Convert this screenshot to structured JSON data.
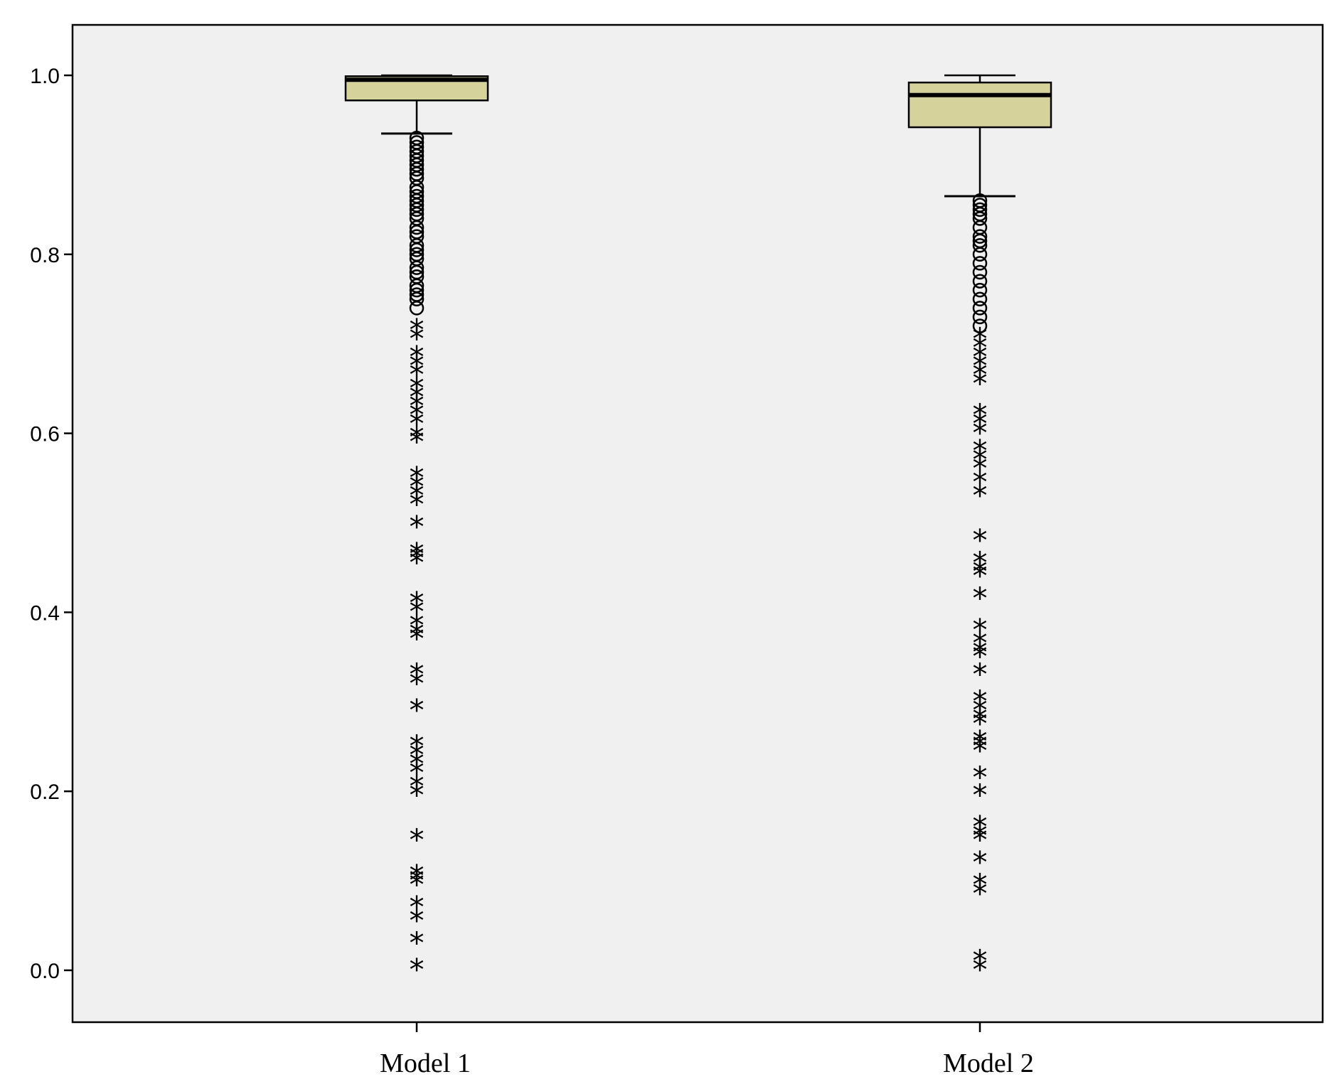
{
  "chart_data": {
    "type": "boxplot",
    "title": "",
    "xlabel": "",
    "ylabel": "",
    "ylim": [
      -0.07,
      1.055
    ],
    "yticks": [
      0.0,
      0.2,
      0.4,
      0.6,
      0.8,
      1.0
    ],
    "ytick_labels": [
      "0.0",
      "0.2",
      "0.4",
      "0.6",
      "0.8",
      "1.0"
    ],
    "grid": false,
    "legend": "none",
    "colors": {
      "plot_bg": "#f0f0f0",
      "box_fill": "#d6d29c",
      "stroke": "#000000"
    },
    "categories": [
      "Model 1",
      "Model 2"
    ],
    "boxes": [
      {
        "category": "Model 1",
        "whisker_low": 0.935,
        "q1": 0.972,
        "median": 0.995,
        "q3": 0.999,
        "whisker_high": 1.0,
        "outliers_circle": [
          0.93,
          0.925,
          0.92,
          0.915,
          0.91,
          0.905,
          0.9,
          0.895,
          0.89,
          0.885,
          0.875,
          0.87,
          0.865,
          0.86,
          0.855,
          0.85,
          0.845,
          0.84,
          0.83,
          0.825,
          0.82,
          0.81,
          0.805,
          0.8,
          0.795,
          0.785,
          0.78,
          0.775,
          0.765,
          0.76,
          0.755,
          0.75,
          0.74
        ],
        "outliers_extreme": [
          0.72,
          0.71,
          0.69,
          0.68,
          0.67,
          0.655,
          0.645,
          0.635,
          0.625,
          0.615,
          0.6,
          0.595,
          0.555,
          0.545,
          0.535,
          0.525,
          0.5,
          0.47,
          0.465,
          0.46,
          0.415,
          0.405,
          0.39,
          0.38,
          0.375,
          0.335,
          0.325,
          0.295,
          0.255,
          0.245,
          0.235,
          0.225,
          0.21,
          0.2,
          0.15,
          0.11,
          0.105,
          0.1,
          0.075,
          0.06,
          0.035,
          0.005
        ]
      },
      {
        "category": "Model 2",
        "whisker_low": 0.865,
        "q1": 0.942,
        "median": 0.978,
        "q3": 0.992,
        "whisker_high": 1.0,
        "outliers_circle": [
          0.86,
          0.855,
          0.85,
          0.845,
          0.84,
          0.83,
          0.82,
          0.815,
          0.81,
          0.8,
          0.79,
          0.78,
          0.77,
          0.76,
          0.75,
          0.74,
          0.73,
          0.72
        ],
        "outliers_extreme": [
          0.71,
          0.7,
          0.69,
          0.68,
          0.67,
          0.66,
          0.625,
          0.615,
          0.605,
          0.585,
          0.575,
          0.565,
          0.55,
          0.535,
          0.485,
          0.46,
          0.45,
          0.445,
          0.42,
          0.385,
          0.37,
          0.36,
          0.355,
          0.335,
          0.305,
          0.295,
          0.285,
          0.28,
          0.26,
          0.255,
          0.25,
          0.22,
          0.2,
          0.165,
          0.155,
          0.15,
          0.125,
          0.1,
          0.09,
          0.015,
          0.005
        ]
      }
    ]
  }
}
